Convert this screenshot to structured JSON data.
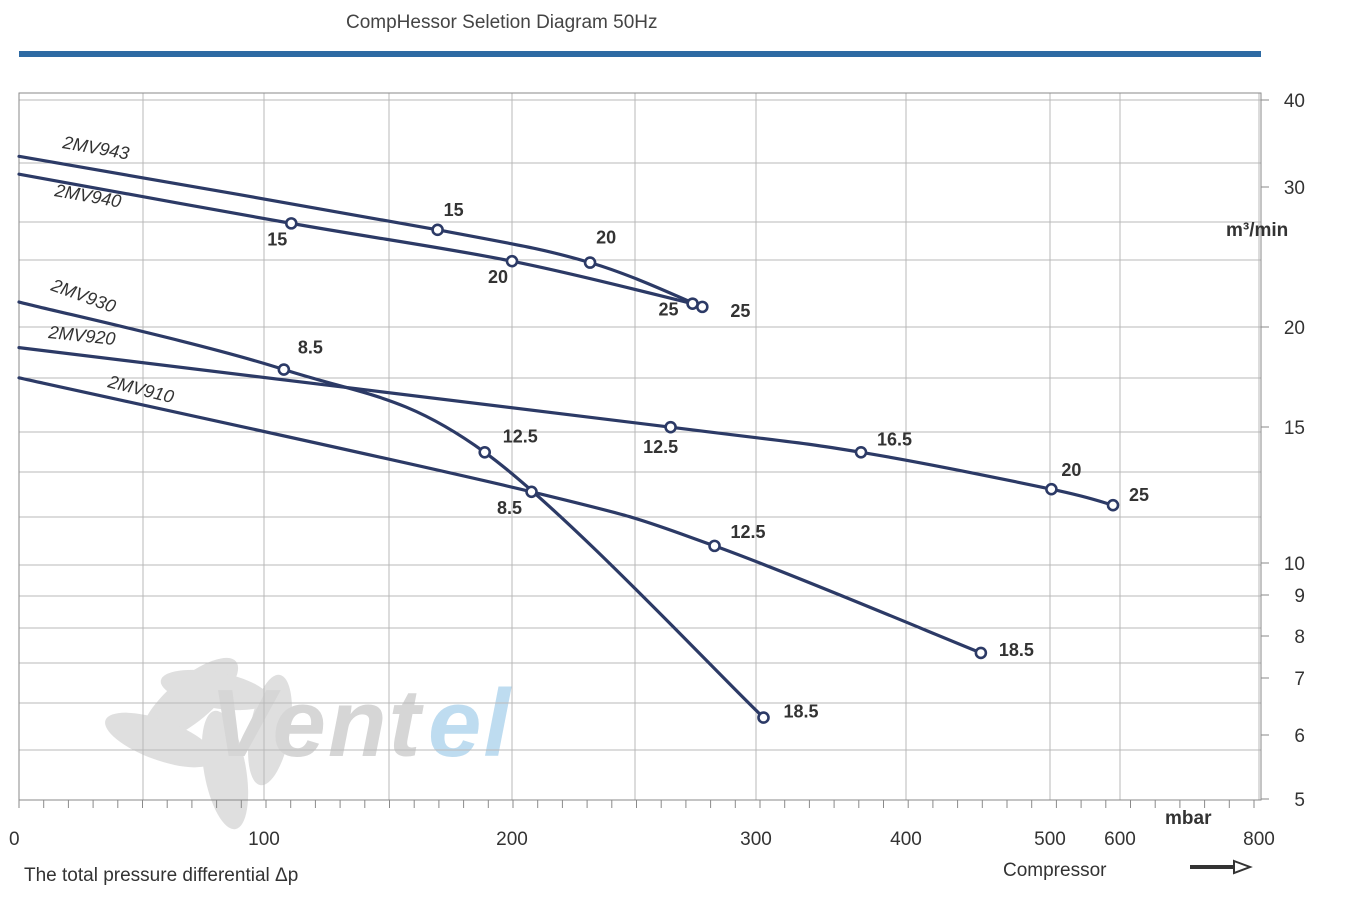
{
  "title": "CompHessor Seletion Diagram 50Hz",
  "footer": {
    "x_caption": "The total pressure differential Δp",
    "compressor_label": "Compressor"
  },
  "logo": {
    "text_gray": "Vent",
    "text_blue": "el"
  },
  "colors": {
    "curve": "#2c3a66",
    "header_bar": "#2e6aa3",
    "watermark_blue": "#b7d9ef"
  },
  "chart_data": {
    "type": "line",
    "title": "CompHessor Seletion Diagram 50Hz",
    "xlabel": "The total pressure differential Δp",
    "x_unit": "mbar",
    "y_unit": "m³/min",
    "x_tick_labels": [
      "0",
      "100",
      "200",
      "300",
      "400",
      "500",
      "600",
      "800"
    ],
    "y_tick_labels": [
      "40",
      "30",
      "20",
      "15",
      "10",
      "9",
      "8",
      "7",
      "6",
      "5"
    ],
    "y_scale": "log",
    "ylim": [
      5,
      40
    ],
    "grid": true,
    "series": [
      {
        "name": "2MV943",
        "points": [
          {
            "x": 0,
            "y": 33.2
          },
          {
            "x": 170,
            "y": 26.5,
            "label": "15"
          },
          {
            "x": 232,
            "y": 24.1,
            "label": "20"
          },
          {
            "x": 278,
            "y": 21.2,
            "label": "25"
          }
        ]
      },
      {
        "name": "2MV940",
        "points": [
          {
            "x": 0,
            "y": 31.3
          },
          {
            "x": 111,
            "y": 27.0,
            "label": "15"
          },
          {
            "x": 200,
            "y": 24.2,
            "label": "20"
          },
          {
            "x": 274,
            "y": 21.4,
            "label": "25"
          }
        ]
      },
      {
        "name": "2MV930",
        "points": [
          {
            "x": 0,
            "y": 21.5
          },
          {
            "x": 108,
            "y": 17.8,
            "label": "8.5"
          },
          {
            "x": 189,
            "y": 14.1,
            "label": "12.5"
          },
          {
            "x": 305,
            "y": 6.3,
            "label": "18.5"
          }
        ]
      },
      {
        "name": "2MV920",
        "points": [
          {
            "x": 0,
            "y": 18.9
          },
          {
            "x": 265,
            "y": 15.2,
            "label": "12.5"
          },
          {
            "x": 370,
            "y": 14.1,
            "label": "16.5"
          },
          {
            "x": 502,
            "y": 12.6,
            "label": "20"
          },
          {
            "x": 590,
            "y": 12.0,
            "label": "25"
          }
        ]
      },
      {
        "name": "2MV910",
        "points": [
          {
            "x": 0,
            "y": 17.4
          },
          {
            "x": 208,
            "y": 12.5,
            "label": "8.5"
          },
          {
            "x": 283,
            "y": 10.6,
            "label": "12.5"
          },
          {
            "x": 452,
            "y": 7.6,
            "label": "18.5"
          }
        ]
      }
    ]
  }
}
